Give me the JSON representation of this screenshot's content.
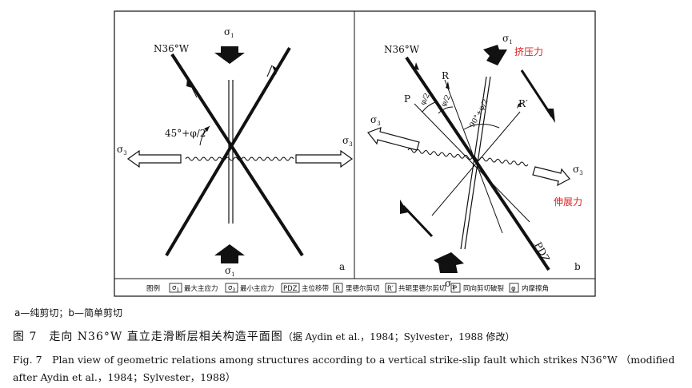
{
  "panel_a": {
    "sigma1": "σ",
    "sigma1_sub": "1",
    "sigma3": "σ",
    "sigma3_sub": "3",
    "strike": "N36°W",
    "angle": "45°+φ/2",
    "panel_label": "a"
  },
  "panel_b": {
    "sigma1": "σ",
    "sigma1_sub": "1",
    "sigma3": "σ",
    "sigma3_sub": "3",
    "strike": "N36°W",
    "compress": "挤压力",
    "extend": "伸展力",
    "P": "P",
    "R": "R",
    "R_prime": "R′",
    "phi_half_1": "φ/2",
    "phi_half_2": "φ/2",
    "angle_90": "90°+φ/2",
    "pdz": "PDZ",
    "panel_label": "b"
  },
  "legend": {
    "title": "图例",
    "sigma1_sym": "σ",
    "sigma1_sub": "1",
    "sigma1_text": "最大主应力",
    "sigma3_sym": "σ",
    "sigma3_sub": "3",
    "sigma3_text": "最小主应力",
    "pdz_sym": "PDZ",
    "pdz_text": "主位移带",
    "r_sym": "R",
    "r_text": "里德尔剪切",
    "rp_sym": "R′",
    "rp_text": "共轭里德尔剪切",
    "p_sym": "P",
    "p_text": "同向剪切破裂",
    "phi_sym": "φ",
    "phi_text": "内摩擦角"
  },
  "captions": {
    "sub": "a—纯剪切；b—简单剪切",
    "cn_main": "图 7　走向 N36°W 直立走滑断层相关构造平面图",
    "cn_source": "（据 Aydin et al.，1984；Sylvester，1988 修改）",
    "en": "Fig. 7　Plan view of geometric relations among structures according to a vertical strike-slip fault which strikes N36°W （modified after Aydin et al.，1984；Sylvester，1988）"
  },
  "colors": {
    "annotation_red": "#e02020",
    "line": "#111111"
  }
}
